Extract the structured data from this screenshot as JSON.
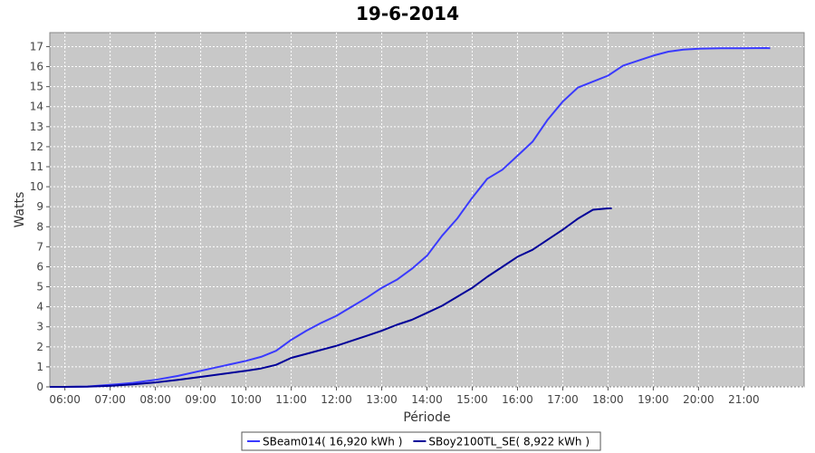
{
  "chart_data": {
    "type": "line",
    "title": "19-6-2014",
    "xlabel": "Période",
    "ylabel": "Watts",
    "ylim": [
      0,
      17.7
    ],
    "xlim": [
      "05:40",
      "22:20"
    ],
    "x_ticks": [
      "06:00",
      "07:00",
      "08:00",
      "09:00",
      "10:00",
      "11:00",
      "12:00",
      "13:00",
      "14:00",
      "15:00",
      "16:00",
      "17:00",
      "18:00",
      "19:00",
      "20:00",
      "21:00"
    ],
    "y_ticks": [
      0,
      1,
      2,
      3,
      4,
      5,
      6,
      7,
      8,
      9,
      10,
      11,
      12,
      13,
      14,
      15,
      16,
      17
    ],
    "grid": true,
    "legend_position": "bottom",
    "series": [
      {
        "name": "SBeam014( 16,920 kWh )",
        "color": "#3a3aff",
        "x": [
          "05:40",
          "06:00",
          "06:30",
          "07:00",
          "07:30",
          "08:00",
          "08:30",
          "09:00",
          "09:30",
          "10:00",
          "10:20",
          "10:40",
          "11:00",
          "11:20",
          "11:40",
          "12:00",
          "12:20",
          "12:40",
          "13:00",
          "13:20",
          "13:40",
          "14:00",
          "14:20",
          "14:40",
          "15:00",
          "15:20",
          "15:40",
          "16:00",
          "16:20",
          "16:40",
          "17:00",
          "17:20",
          "17:40",
          "18:00",
          "18:20",
          "18:40",
          "19:00",
          "19:20",
          "19:40",
          "20:00",
          "20:30",
          "21:00",
          "21:30",
          "21:35"
        ],
        "values": [
          0,
          0,
          0.02,
          0.1,
          0.2,
          0.35,
          0.55,
          0.8,
          1.05,
          1.3,
          1.5,
          1.8,
          2.35,
          2.8,
          3.2,
          3.55,
          4.0,
          4.45,
          4.95,
          5.35,
          5.9,
          6.55,
          7.55,
          8.4,
          9.45,
          10.4,
          10.85,
          11.55,
          12.25,
          13.35,
          14.25,
          14.95,
          15.25,
          15.55,
          16.05,
          16.3,
          16.55,
          16.75,
          16.85,
          16.9,
          16.92,
          16.92,
          16.93,
          16.92
        ]
      },
      {
        "name": "SBoy2100TL_SE( 8,922 kWh )",
        "color": "#000099",
        "x": [
          "05:40",
          "06:00",
          "06:30",
          "07:00",
          "07:30",
          "08:00",
          "08:30",
          "09:00",
          "09:30",
          "10:00",
          "10:20",
          "10:40",
          "11:00",
          "11:20",
          "11:40",
          "12:00",
          "12:20",
          "12:40",
          "13:00",
          "13:20",
          "13:40",
          "14:00",
          "14:20",
          "14:40",
          "15:00",
          "15:20",
          "15:40",
          "16:00",
          "16:20",
          "16:40",
          "17:00",
          "17:20",
          "17:40",
          "18:00",
          "18:05"
        ],
        "values": [
          0,
          0,
          0.01,
          0.05,
          0.12,
          0.22,
          0.35,
          0.5,
          0.65,
          0.8,
          0.92,
          1.1,
          1.45,
          1.65,
          1.85,
          2.05,
          2.3,
          2.55,
          2.8,
          3.1,
          3.35,
          3.7,
          4.05,
          4.5,
          4.95,
          5.5,
          6.0,
          6.5,
          6.85,
          7.35,
          7.85,
          8.4,
          8.85,
          8.92,
          8.92
        ]
      }
    ]
  }
}
